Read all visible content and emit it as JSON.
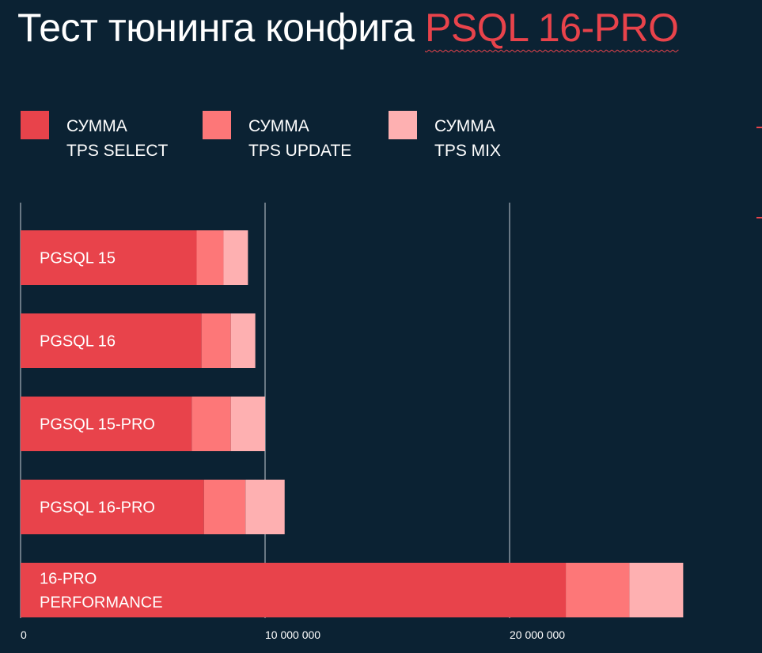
{
  "title": {
    "main": "Тест тюнинга конфига ",
    "accent": "PSQL 16-PRO"
  },
  "colors": {
    "background": "#0b2233",
    "select": "#e8434b",
    "update": "#fd7778",
    "mix": "#feb0b1",
    "gridline": "#c7ced4"
  },
  "legend": [
    {
      "label": "СУММА\nTPS SELECT",
      "color": "#e8434b"
    },
    {
      "label": "СУММА\nTPS UPDATE",
      "color": "#fd7778"
    },
    {
      "label": "СУММА\nTPS MIX",
      "color": "#feb0b1"
    }
  ],
  "chart_data": {
    "type": "bar",
    "orientation": "horizontal",
    "stacked": true,
    "categories": [
      "PGSQL 15",
      "PGSQL 16",
      "PGSQL 15-PRO",
      "PGSQL 16-PRO",
      "16-PRO\nPERFORMANCE"
    ],
    "series": [
      {
        "name": "СУММА TPS SELECT",
        "values": [
          7200000,
          7400000,
          7000000,
          7500000,
          22300000
        ]
      },
      {
        "name": "СУММА TPS UPDATE",
        "values": [
          1100000,
          1200000,
          1600000,
          1700000,
          2600000
        ]
      },
      {
        "name": "СУММА TPS MIX",
        "values": [
          1000000,
          1000000,
          1400000,
          1600000,
          2200000
        ]
      }
    ],
    "xlim": [
      0,
      30000000
    ],
    "xticks": [
      0,
      10000000,
      20000000
    ],
    "xtick_labels": [
      "0",
      "10 000 000",
      "20 000 000"
    ],
    "grid": true,
    "legend_position": "top-left",
    "title": "Тест тюнинга конфига PSQL 16-PRO",
    "xlabel": "",
    "ylabel": ""
  }
}
